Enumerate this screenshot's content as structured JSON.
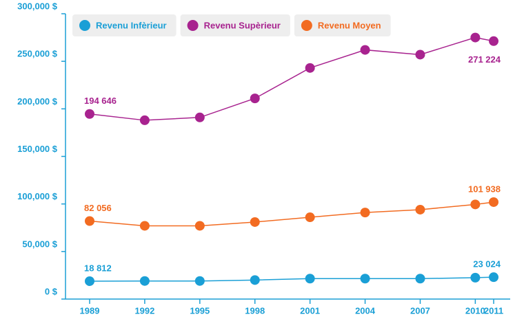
{
  "chart_data": {
    "type": "line",
    "x": [
      1989,
      1992,
      1995,
      1998,
      2001,
      2004,
      2007,
      2010,
      2011
    ],
    "xlim": [
      1989,
      2011
    ],
    "xticks": [
      1989,
      1992,
      1995,
      1998,
      2001,
      2004,
      2007,
      2010,
      2011
    ],
    "ylim": [
      0,
      300000
    ],
    "yticks": [
      {
        "value": 0,
        "label": "0 $"
      },
      {
        "value": 50000,
        "label": "50,000 $"
      },
      {
        "value": 100000,
        "label": "100,000 $"
      },
      {
        "value": 150000,
        "label": "150,000 $"
      },
      {
        "value": 200000,
        "label": "200,000 $"
      },
      {
        "value": 250000,
        "label": "250,000 $"
      },
      {
        "value": 300000,
        "label": "300,000 $"
      }
    ],
    "legend": "top",
    "series": [
      {
        "name": "Revenu Infèrieur",
        "color": "#1a9fd6",
        "values": [
          18812,
          19000,
          19000,
          20000,
          21500,
          21500,
          21500,
          22500,
          23024
        ],
        "value_labels": [
          "18 812",
          null,
          null,
          null,
          null,
          null,
          null,
          null,
          "23 024"
        ]
      },
      {
        "name": "Revenu Supèrieur",
        "color": "#a8238f",
        "values": [
          194646,
          188000,
          191000,
          211000,
          243000,
          262000,
          257000,
          275000,
          271224
        ],
        "value_labels": [
          "194 646",
          null,
          null,
          null,
          null,
          null,
          null,
          null,
          "271 224"
        ]
      },
      {
        "name": "Revenu Moyen",
        "color": "#f26b21",
        "values": [
          82056,
          77000,
          77000,
          81000,
          86000,
          91000,
          94000,
          99500,
          101938
        ],
        "value_labels": [
          "82 056",
          null,
          null,
          null,
          null,
          null,
          null,
          null,
          "101 938"
        ]
      }
    ]
  }
}
